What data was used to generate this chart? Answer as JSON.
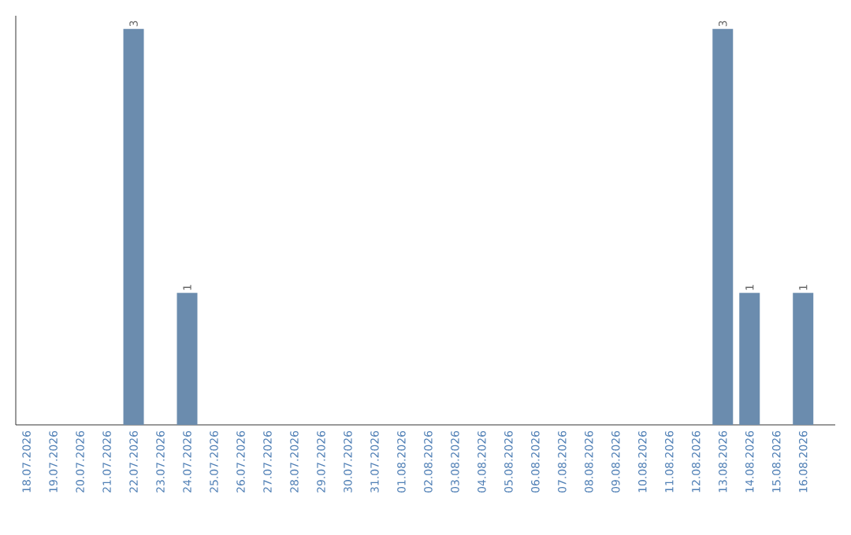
{
  "chart_data": {
    "type": "bar",
    "categories": [
      "18.07.2026",
      "19.07.2026",
      "20.07.2026",
      "21.07.2026",
      "22.07.2026",
      "23.07.2026",
      "24.07.2026",
      "25.07.2026",
      "26.07.2026",
      "27.07.2026",
      "28.07.2026",
      "29.07.2026",
      "30.07.2026",
      "31.07.2026",
      "01.08.2026",
      "02.08.2026",
      "03.08.2026",
      "04.08.2026",
      "05.08.2026",
      "06.08.2026",
      "07.08.2026",
      "08.08.2026",
      "09.08.2026",
      "10.08.2026",
      "11.08.2026",
      "12.08.2026",
      "13.08.2026",
      "14.08.2026",
      "15.08.2026",
      "16.08.2026"
    ],
    "values": [
      0,
      0,
      0,
      0,
      3,
      0,
      1,
      0,
      0,
      0,
      0,
      0,
      0,
      0,
      0,
      0,
      0,
      0,
      0,
      0,
      0,
      0,
      0,
      0,
      0,
      0,
      3,
      1,
      0,
      1
    ],
    "value_labels": [
      null,
      null,
      null,
      null,
      "3",
      null,
      "1",
      null,
      null,
      null,
      null,
      null,
      null,
      null,
      null,
      null,
      null,
      null,
      null,
      null,
      null,
      null,
      null,
      null,
      null,
      null,
      "3",
      "1",
      null,
      "1"
    ],
    "color": "#6b8cae",
    "ylim": [
      0,
      3.1
    ]
  }
}
